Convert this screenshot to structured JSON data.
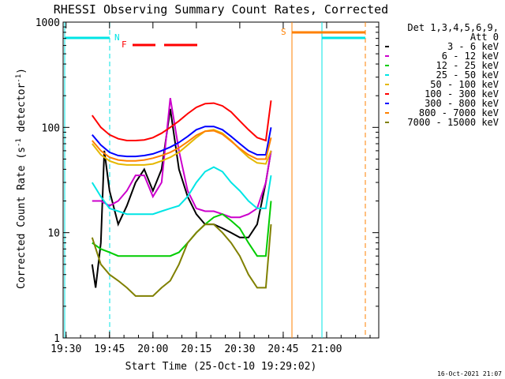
{
  "chart_data": {
    "type": "line",
    "title": "RHESSI Observing Summary Count Rates, Corrected",
    "xlabel": "Start Time (25-Oct-10 19:29:02)",
    "ylabel_main": "Corrected Count Rate (s",
    "ylabel_sup1": "-1",
    "ylabel_mid": " detector",
    "ylabel_sup2": "-1",
    "ylabel_end": ")",
    "y_scale": "log",
    "ylim": [
      1,
      1000
    ],
    "xlim_minutes": [
      19.483,
      21.3
    ],
    "x_ticks": [
      {
        "label": "19:30",
        "t": 19.5
      },
      {
        "label": "19:45",
        "t": 19.75
      },
      {
        "label": "20:00",
        "t": 20.0
      },
      {
        "label": "20:15",
        "t": 20.25
      },
      {
        "label": "20:30",
        "t": 20.5
      },
      {
        "label": "20:45",
        "t": 20.75
      },
      {
        "label": "21:00",
        "t": 21.0
      }
    ],
    "y_ticks": [
      {
        "label": "1",
        "v": 1
      },
      {
        "label": "10",
        "v": 10
      },
      {
        "label": "100",
        "v": 100
      },
      {
        "label": "1000",
        "v": 1000
      }
    ],
    "legend_header": [
      "Det 1,3,4,5,6,9,",
      "Att 0"
    ],
    "legend_placement": "right",
    "series": [
      {
        "name": "3 - 6 keV",
        "color": "#000000",
        "points": [
          [
            19.65,
            5
          ],
          [
            19.67,
            3
          ],
          [
            19.7,
            8
          ],
          [
            19.72,
            60
          ],
          [
            19.75,
            25
          ],
          [
            19.8,
            12
          ],
          [
            19.85,
            18
          ],
          [
            19.9,
            30
          ],
          [
            19.95,
            40
          ],
          [
            20.0,
            25
          ],
          [
            20.05,
            40
          ],
          [
            20.1,
            150
          ],
          [
            20.15,
            40
          ],
          [
            20.2,
            22
          ],
          [
            20.25,
            15
          ],
          [
            20.3,
            12
          ],
          [
            20.35,
            12
          ],
          [
            20.4,
            11
          ],
          [
            20.45,
            10
          ],
          [
            20.5,
            9
          ],
          [
            20.55,
            9
          ],
          [
            20.6,
            12
          ],
          [
            20.65,
            30
          ],
          [
            20.68,
            60
          ]
        ]
      },
      {
        "name": "6 - 12 keV",
        "color": "#cc00cc",
        "points": [
          [
            19.65,
            20
          ],
          [
            19.7,
            20
          ],
          [
            19.75,
            18
          ],
          [
            19.8,
            20
          ],
          [
            19.85,
            25
          ],
          [
            19.9,
            35
          ],
          [
            19.95,
            35
          ],
          [
            20.0,
            22
          ],
          [
            20.05,
            30
          ],
          [
            20.1,
            190
          ],
          [
            20.15,
            60
          ],
          [
            20.2,
            25
          ],
          [
            20.25,
            17
          ],
          [
            20.3,
            16
          ],
          [
            20.35,
            16
          ],
          [
            20.4,
            15
          ],
          [
            20.45,
            14
          ],
          [
            20.5,
            14
          ],
          [
            20.55,
            15
          ],
          [
            20.6,
            17
          ],
          [
            20.65,
            30
          ],
          [
            20.68,
            60
          ]
        ]
      },
      {
        "name": "12 - 25 keV",
        "color": "#00cc00",
        "points": [
          [
            19.65,
            8
          ],
          [
            19.7,
            7
          ],
          [
            19.75,
            6.5
          ],
          [
            19.8,
            6
          ],
          [
            19.85,
            6
          ],
          [
            19.9,
            6
          ],
          [
            19.95,
            6
          ],
          [
            20.0,
            6
          ],
          [
            20.05,
            6
          ],
          [
            20.1,
            6
          ],
          [
            20.15,
            6.5
          ],
          [
            20.2,
            8
          ],
          [
            20.25,
            10
          ],
          [
            20.3,
            12
          ],
          [
            20.35,
            14
          ],
          [
            20.4,
            15
          ],
          [
            20.45,
            13
          ],
          [
            20.5,
            11
          ],
          [
            20.55,
            8
          ],
          [
            20.6,
            6
          ],
          [
            20.65,
            6
          ],
          [
            20.68,
            20
          ]
        ]
      },
      {
        "name": "25 - 50 keV",
        "color": "#00e5e5",
        "points": [
          [
            19.65,
            30
          ],
          [
            19.7,
            22
          ],
          [
            19.75,
            17
          ],
          [
            19.8,
            16
          ],
          [
            19.85,
            15
          ],
          [
            19.9,
            15
          ],
          [
            19.95,
            15
          ],
          [
            20.0,
            15
          ],
          [
            20.05,
            16
          ],
          [
            20.1,
            17
          ],
          [
            20.15,
            18
          ],
          [
            20.2,
            22
          ],
          [
            20.25,
            30
          ],
          [
            20.3,
            38
          ],
          [
            20.35,
            42
          ],
          [
            20.4,
            38
          ],
          [
            20.45,
            30
          ],
          [
            20.5,
            25
          ],
          [
            20.55,
            20
          ],
          [
            20.6,
            17
          ],
          [
            20.65,
            17
          ],
          [
            20.68,
            35
          ]
        ]
      },
      {
        "name": "50 - 100 keV",
        "color": "#e5b800",
        "points": [
          [
            19.65,
            70
          ],
          [
            19.7,
            55
          ],
          [
            19.75,
            48
          ],
          [
            19.8,
            45
          ],
          [
            19.85,
            44
          ],
          [
            19.9,
            44
          ],
          [
            19.95,
            44
          ],
          [
            20.0,
            45
          ],
          [
            20.05,
            48
          ],
          [
            20.1,
            52
          ],
          [
            20.15,
            58
          ],
          [
            20.2,
            68
          ],
          [
            20.25,
            80
          ],
          [
            20.3,
            92
          ],
          [
            20.35,
            95
          ],
          [
            20.4,
            88
          ],
          [
            20.45,
            75
          ],
          [
            20.5,
            62
          ],
          [
            20.55,
            52
          ],
          [
            20.6,
            46
          ],
          [
            20.65,
            45
          ],
          [
            20.68,
            60
          ]
        ]
      },
      {
        "name": "100 - 300 keV",
        "color": "#ff0000",
        "points": [
          [
            19.65,
            130
          ],
          [
            19.7,
            100
          ],
          [
            19.75,
            85
          ],
          [
            19.8,
            78
          ],
          [
            19.85,
            75
          ],
          [
            19.9,
            75
          ],
          [
            19.95,
            76
          ],
          [
            20.0,
            80
          ],
          [
            20.05,
            88
          ],
          [
            20.1,
            100
          ],
          [
            20.15,
            115
          ],
          [
            20.2,
            135
          ],
          [
            20.25,
            155
          ],
          [
            20.3,
            168
          ],
          [
            20.35,
            170
          ],
          [
            20.4,
            160
          ],
          [
            20.45,
            140
          ],
          [
            20.5,
            115
          ],
          [
            20.55,
            95
          ],
          [
            20.6,
            80
          ],
          [
            20.65,
            75
          ],
          [
            20.68,
            180
          ]
        ]
      },
      {
        "name": "300 - 800 keV",
        "color": "#0000ff",
        "points": [
          [
            19.65,
            85
          ],
          [
            19.7,
            68
          ],
          [
            19.75,
            58
          ],
          [
            19.8,
            54
          ],
          [
            19.85,
            53
          ],
          [
            19.9,
            53
          ],
          [
            19.95,
            54
          ],
          [
            20.0,
            56
          ],
          [
            20.05,
            60
          ],
          [
            20.1,
            65
          ],
          [
            20.15,
            72
          ],
          [
            20.2,
            82
          ],
          [
            20.25,
            95
          ],
          [
            20.3,
            102
          ],
          [
            20.35,
            102
          ],
          [
            20.4,
            95
          ],
          [
            20.45,
            82
          ],
          [
            20.5,
            70
          ],
          [
            20.55,
            60
          ],
          [
            20.6,
            55
          ],
          [
            20.65,
            55
          ],
          [
            20.68,
            100
          ]
        ]
      },
      {
        "name": "800 - 7000 keV",
        "color": "#ff8000",
        "points": [
          [
            19.65,
            75
          ],
          [
            19.7,
            60
          ],
          [
            19.75,
            52
          ],
          [
            19.8,
            49
          ],
          [
            19.85,
            48
          ],
          [
            19.9,
            48
          ],
          [
            19.95,
            49
          ],
          [
            20.0,
            51
          ],
          [
            20.05,
            54
          ],
          [
            20.1,
            58
          ],
          [
            20.15,
            64
          ],
          [
            20.2,
            73
          ],
          [
            20.25,
            84
          ],
          [
            20.3,
            92
          ],
          [
            20.35,
            93
          ],
          [
            20.4,
            86
          ],
          [
            20.45,
            74
          ],
          [
            20.5,
            63
          ],
          [
            20.55,
            55
          ],
          [
            20.6,
            50
          ],
          [
            20.65,
            50
          ],
          [
            20.68,
            80
          ]
        ]
      },
      {
        "name": "7000 - 15000 keV",
        "color": "#808000",
        "points": [
          [
            19.65,
            9
          ],
          [
            19.7,
            5
          ],
          [
            19.75,
            4
          ],
          [
            19.8,
            3.5
          ],
          [
            19.85,
            3
          ],
          [
            19.9,
            2.5
          ],
          [
            19.95,
            2.5
          ],
          [
            20.0,
            2.5
          ],
          [
            20.05,
            3
          ],
          [
            20.1,
            3.5
          ],
          [
            20.15,
            5
          ],
          [
            20.2,
            8
          ],
          [
            20.25,
            10
          ],
          [
            20.3,
            12
          ],
          [
            20.35,
            12
          ],
          [
            20.4,
            10
          ],
          [
            20.45,
            8
          ],
          [
            20.5,
            6
          ],
          [
            20.55,
            4
          ],
          [
            20.6,
            3
          ],
          [
            20.65,
            3
          ],
          [
            20.68,
            12
          ]
        ]
      }
    ],
    "markers": [
      {
        "label": "N",
        "color": "#00e5e5"
      },
      {
        "label": "F",
        "color": "#ff0000"
      },
      {
        "label": "S",
        "color": "#ff8000"
      }
    ],
    "footer_timestamp": "16-Oct-2021 21:07"
  }
}
